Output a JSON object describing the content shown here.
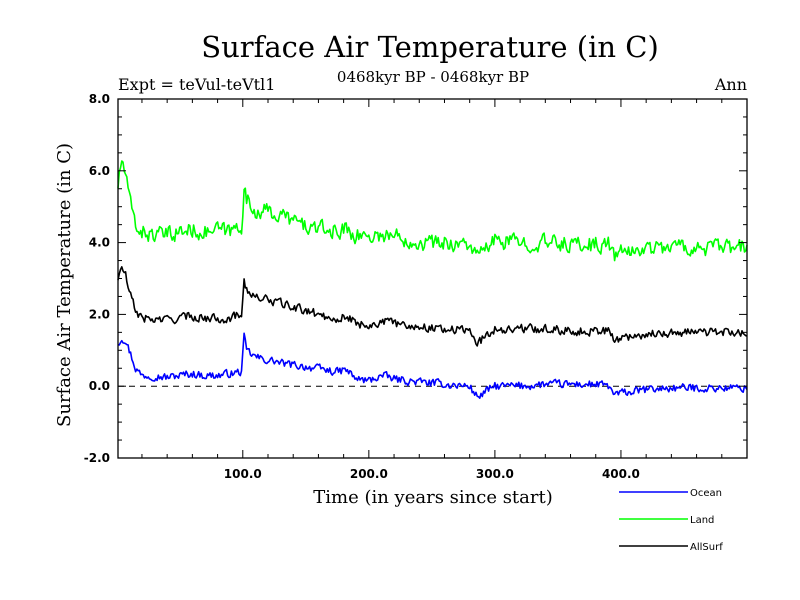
{
  "chart_data": {
    "type": "line",
    "title": "Surface Air Temperature (in C)",
    "subtitle": "0468kyr BP - 0468kyr BP",
    "experiment_label": "Expt = teVul-teVtl1",
    "period_label": "Ann",
    "xlabel": "Time (in years since start)",
    "ylabel": "Surface Air Temperature (in C)",
    "xlim": [
      1,
      500
    ],
    "ylim": [
      -2.0,
      8.0
    ],
    "x_ticks": [
      "100.0",
      "200.0",
      "300.0",
      "400.0"
    ],
    "y_ticks": [
      "-2.0",
      "0.0",
      "2.0",
      "4.0",
      "6.0",
      "8.0"
    ],
    "reference_line": 0.0,
    "legend_position": "bottom-right outside",
    "series": [
      {
        "name": "Ocean",
        "color": "#0000ff",
        "x": [
          1,
          4,
          7,
          10,
          15,
          20,
          30,
          40,
          50,
          60,
          70,
          80,
          90,
          99,
          101,
          103,
          108,
          115,
          125,
          135,
          150,
          165,
          175,
          182,
          190,
          200,
          210,
          220,
          230,
          245,
          260,
          280,
          286,
          300,
          320,
          340,
          360,
          380,
          390,
          395,
          400,
          420,
          440,
          460,
          480,
          500
        ],
        "values": [
          1.2,
          1.35,
          1.3,
          1.0,
          0.5,
          0.3,
          0.3,
          0.25,
          0.3,
          0.35,
          0.3,
          0.3,
          0.35,
          0.4,
          1.35,
          1.0,
          0.85,
          0.75,
          0.7,
          0.6,
          0.55,
          0.45,
          0.4,
          0.45,
          0.2,
          0.15,
          0.3,
          0.2,
          0.15,
          0.1,
          0.05,
          0.0,
          -0.3,
          0.0,
          0.0,
          0.05,
          0.05,
          0.05,
          0.0,
          -0.25,
          -0.2,
          -0.1,
          -0.05,
          -0.05,
          -0.05,
          -0.05
        ]
      },
      {
        "name": "Land",
        "color": "#00ff00",
        "x": [
          1,
          4,
          7,
          10,
          15,
          20,
          30,
          40,
          50,
          60,
          70,
          80,
          90,
          99,
          101,
          103,
          108,
          115,
          125,
          135,
          150,
          165,
          175,
          182,
          190,
          200,
          210,
          220,
          230,
          245,
          260,
          280,
          286,
          300,
          320,
          340,
          360,
          380,
          390,
          395,
          400,
          420,
          440,
          460,
          480,
          500
        ],
        "values": [
          5.6,
          6.3,
          5.9,
          5.2,
          4.5,
          4.3,
          4.2,
          4.2,
          4.3,
          4.35,
          4.3,
          4.35,
          4.3,
          4.5,
          5.5,
          5.2,
          4.9,
          4.9,
          4.8,
          4.7,
          4.45,
          4.35,
          4.3,
          4.4,
          4.2,
          4.2,
          4.2,
          4.2,
          4.1,
          4.0,
          4.0,
          3.95,
          3.6,
          4.05,
          4.0,
          4.0,
          3.95,
          3.95,
          3.95,
          3.65,
          3.7,
          3.85,
          3.9,
          3.85,
          3.85,
          3.85
        ]
      },
      {
        "name": "AllSurf",
        "color": "#000000",
        "x": [
          1,
          4,
          7,
          10,
          15,
          20,
          30,
          40,
          50,
          60,
          70,
          80,
          90,
          99,
          101,
          103,
          108,
          115,
          125,
          135,
          150,
          165,
          175,
          182,
          190,
          200,
          210,
          220,
          230,
          245,
          260,
          280,
          286,
          300,
          320,
          340,
          360,
          380,
          390,
          395,
          400,
          420,
          440,
          460,
          480,
          500
        ],
        "values": [
          3.0,
          3.3,
          3.1,
          2.6,
          2.1,
          1.9,
          1.85,
          1.85,
          1.9,
          1.95,
          1.9,
          1.9,
          1.9,
          2.0,
          3.05,
          2.7,
          2.5,
          2.45,
          2.35,
          2.25,
          2.1,
          1.95,
          1.9,
          1.95,
          1.75,
          1.7,
          1.8,
          1.75,
          1.7,
          1.65,
          1.6,
          1.55,
          1.2,
          1.6,
          1.6,
          1.6,
          1.55,
          1.55,
          1.55,
          1.25,
          1.35,
          1.45,
          1.5,
          1.5,
          1.5,
          1.5
        ]
      }
    ]
  }
}
